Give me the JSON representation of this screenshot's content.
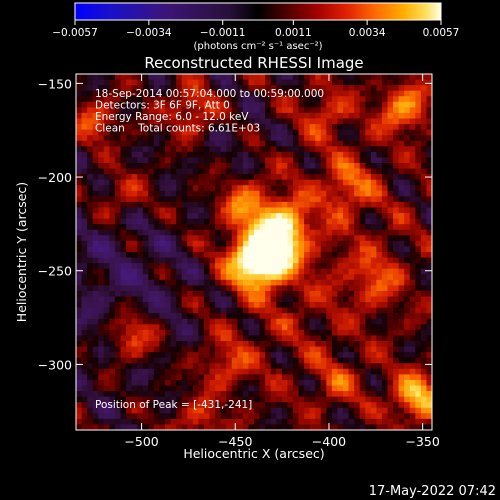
{
  "colorbar": {
    "ticks": [
      "-0.0057",
      "-0.0034",
      "-0.0011",
      "0.0011",
      "0.0034",
      "0.0057"
    ],
    "unit_label": "(photons cm⁻² s⁻¹ asec⁻²)",
    "range": [
      -0.0057,
      0.0057
    ]
  },
  "chart_data": {
    "type": "heatmap",
    "title": "Reconstructed RHESSI Image",
    "xlabel": "Heliocentric X (arcsec)",
    "ylabel": "Heliocentric Y (arcsec)",
    "xlim": [
      -535,
      -345
    ],
    "ylim": [
      -335,
      -145
    ],
    "x_ticks": [
      -500,
      -450,
      -400,
      -350
    ],
    "y_ticks": [
      -150,
      -200,
      -250,
      -300
    ],
    "x_tick_labels": [
      "−500",
      "−450",
      "−400",
      "−350"
    ],
    "y_tick_labels": [
      "−150",
      "−200",
      "−250",
      "−300"
    ],
    "info_lines": [
      "18-Sep-2014 00:57:04.000 to 00:59:00.000",
      "Detectors: 3F 6F 9F, Att 0",
      "Energy Range: 6.0 - 12.0 keV",
      "Clean    Total counts: 6.61E+03"
    ],
    "peak_label": "Position of Peak = [-431,-241]",
    "peak_position": [
      -431,
      -241
    ],
    "sources": [
      {
        "x": -431,
        "y": -241,
        "intensity": 0.0057
      },
      {
        "x": -441,
        "y": -246,
        "intensity": 0.0045
      },
      {
        "x": -425,
        "y": -226,
        "intensity": 0.004
      },
      {
        "x": -445,
        "y": -215,
        "intensity": 0.0025
      },
      {
        "x": -360,
        "y": -163,
        "intensity": 0.0035
      },
      {
        "x": -353,
        "y": -318,
        "intensity": 0.0042
      },
      {
        "x": -505,
        "y": -285,
        "intensity": 0.003
      },
      {
        "x": -473,
        "y": -165,
        "intensity": 0.0025
      },
      {
        "x": -525,
        "y": -170,
        "intensity": 0.0022
      },
      {
        "x": -390,
        "y": -205,
        "intensity": 0.0022
      },
      {
        "x": -375,
        "y": -255,
        "intensity": 0.002
      },
      {
        "x": -510,
        "y": -210,
        "intensity": 0.0018
      },
      {
        "x": -455,
        "y": -300,
        "intensity": 0.002
      },
      {
        "x": -470,
        "y": -330,
        "intensity": 0.0018
      },
      {
        "x": -395,
        "y": -310,
        "intensity": 0.0016
      },
      {
        "x": -400,
        "y": -165,
        "intensity": 0.0018
      }
    ]
  },
  "footer": {
    "timestamp": "17-May-2022 07:42"
  }
}
